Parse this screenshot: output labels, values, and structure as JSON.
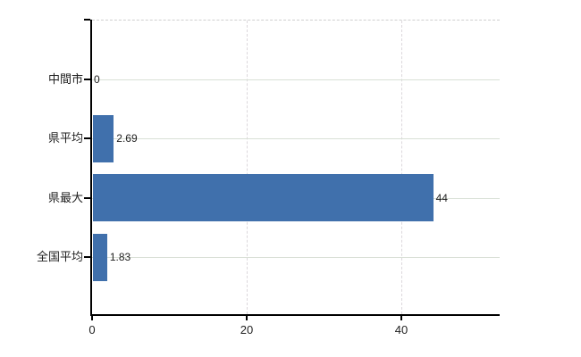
{
  "chart_data": {
    "type": "bar",
    "orientation": "horizontal",
    "title": "",
    "categories": [
      "中間市",
      "県平均",
      "県最大",
      "全国平均"
    ],
    "values": [
      0,
      2.69,
      44,
      1.83
    ],
    "value_labels": [
      "0",
      "2.69",
      "44",
      "1.83"
    ],
    "x_ticks": [
      0,
      20,
      40
    ],
    "x_tick_labels": [
      "0",
      "20",
      "40"
    ],
    "xlim": [
      0,
      52.7
    ],
    "grid": true,
    "legend": false,
    "colors": {
      "bar": "#4070ac",
      "h_gridline": "#d9e0d6",
      "v_gridline": "#dcd8dc",
      "plot_top_border": "#cfcfcf",
      "axis": "#000000",
      "text": "#1f1f1f"
    }
  }
}
